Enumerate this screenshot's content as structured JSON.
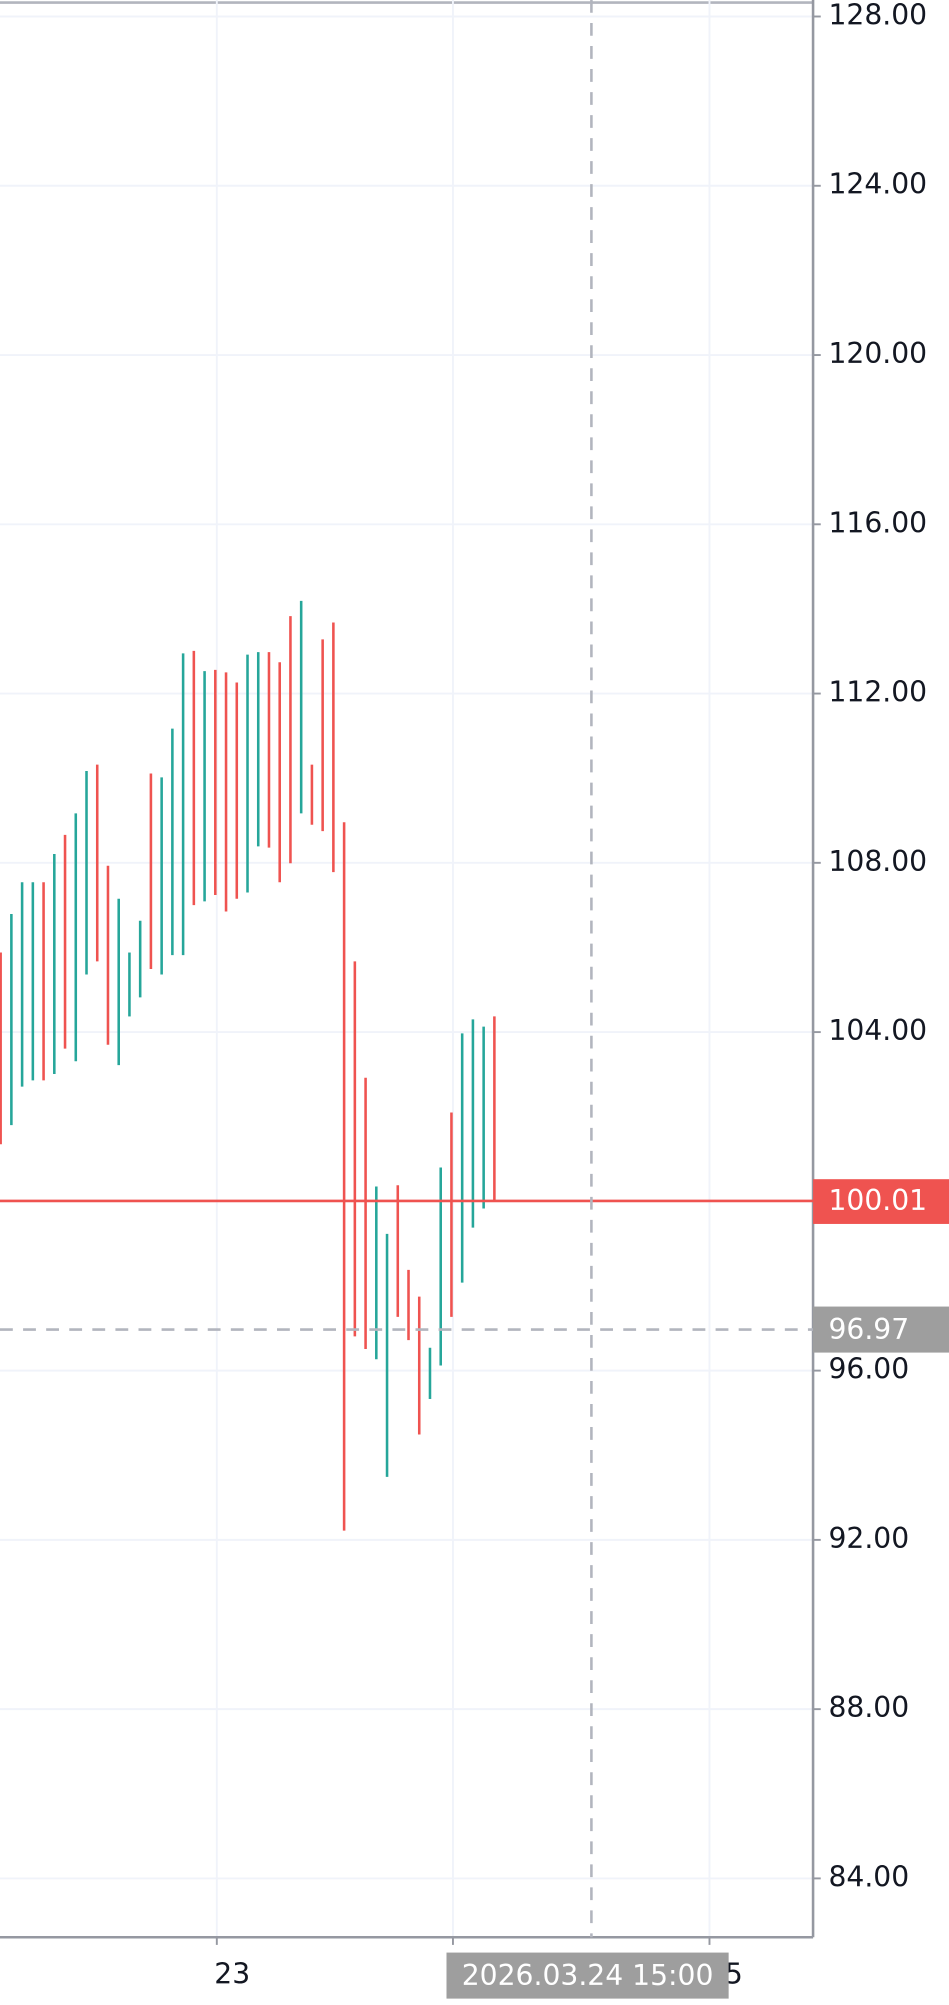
{
  "chart_data": {
    "type": "ohlc-range",
    "xlim": [
      0,
      75.75
    ],
    "ylim": [
      82.61,
      128.39
    ],
    "yticks": [
      {
        "value": 84,
        "label": "84.00"
      },
      {
        "value": 88,
        "label": "88.00"
      },
      {
        "value": 92,
        "label": "92.00"
      },
      {
        "value": 96,
        "label": "96.00"
      },
      {
        "value": 100,
        "label": "100.00"
      },
      {
        "value": 104,
        "label": "104.00"
      },
      {
        "value": 108,
        "label": "108.00"
      },
      {
        "value": 112,
        "label": "112.00"
      },
      {
        "value": 116,
        "label": "116.00"
      },
      {
        "value": 120,
        "label": "120.00"
      },
      {
        "value": 124,
        "label": "124.00"
      },
      {
        "value": 128,
        "label": "128.00"
      }
    ],
    "xticks": [
      {
        "value": 20.2,
        "label": "23"
      },
      {
        "value": 42.2
      },
      {
        "value": 66.1,
        "label": "25"
      }
    ],
    "grid": true,
    "up_color": "#26a69a",
    "down_color": "#ef5350",
    "high": [
      105.88,
      106.79,
      107.54,
      107.54,
      107.54,
      108.21,
      108.66,
      109.17,
      110.17,
      110.32,
      107.93,
      107.15,
      105.88,
      106.63,
      110.11,
      110.02,
      111.17,
      112.95,
      113.01,
      112.53,
      112.56,
      112.5,
      112.26,
      112.92,
      112.98,
      112.98,
      112.74,
      113.83,
      114.19,
      110.32,
      113.28,
      113.68,
      108.96,
      105.67,
      102.92,
      100.35,
      99.23,
      100.38,
      98.38,
      97.75,
      96.54,
      100.8,
      102.1,
      103.97,
      104.3,
      104.13,
      104.37
    ],
    "low": [
      101.35,
      101.8,
      102.71,
      102.86,
      102.86,
      103.01,
      103.61,
      103.31,
      105.36,
      105.67,
      103.7,
      103.22,
      104.37,
      104.82,
      105.49,
      105.36,
      105.82,
      105.82,
      107.0,
      107.09,
      107.24,
      106.85,
      107.15,
      107.3,
      108.39,
      108.36,
      107.54,
      107.99,
      109.17,
      108.9,
      108.75,
      107.78,
      92.22,
      96.81,
      96.51,
      96.27,
      93.49,
      97.27,
      96.72,
      94.49,
      95.33,
      96.12,
      97.27,
      98.08,
      99.38,
      99.83,
      99.99
    ],
    "direction": [
      "down",
      "up",
      "up",
      "up",
      "down",
      "up",
      "down",
      "up",
      "up",
      "down",
      "down",
      "up",
      "up",
      "up",
      "down",
      "up",
      "up",
      "up",
      "down",
      "up",
      "down",
      "down",
      "down",
      "up",
      "up",
      "down",
      "down",
      "down",
      "up",
      "down",
      "down",
      "down",
      "down",
      "down",
      "down",
      "up",
      "up",
      "down",
      "down",
      "down",
      "up",
      "up",
      "down",
      "up",
      "up",
      "up",
      "down"
    ],
    "last_price": {
      "value": 100.01,
      "label": "100.01",
      "color": "#ef5350"
    },
    "crosshair": {
      "y": {
        "value": 96.97,
        "label": "96.97"
      },
      "x": {
        "value": 55.1,
        "label": "2026.03.24 15:00"
      }
    }
  }
}
